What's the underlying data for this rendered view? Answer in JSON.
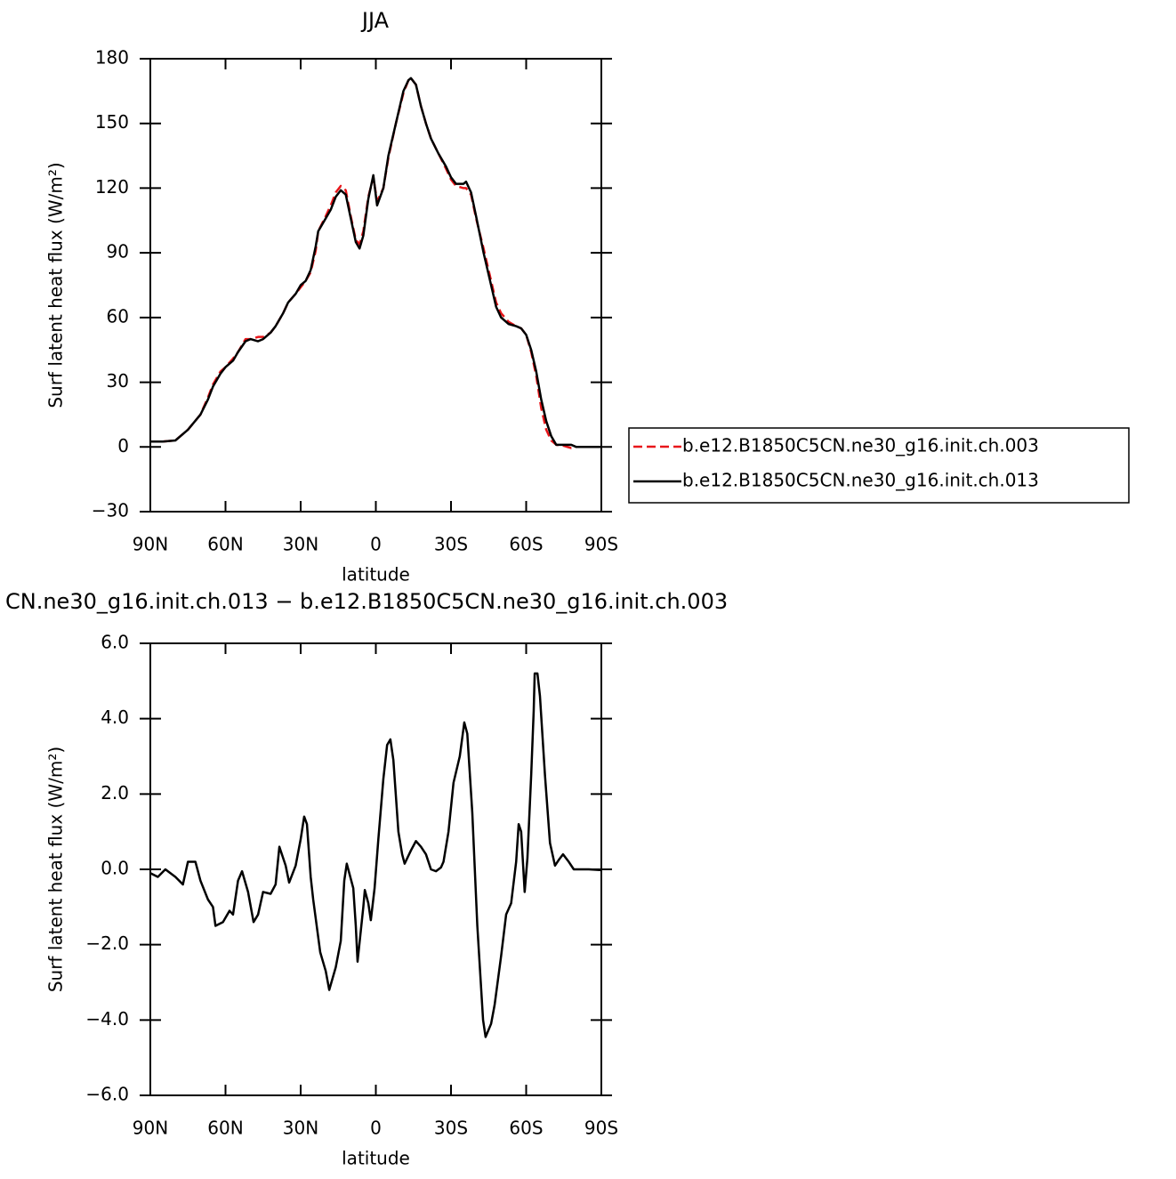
{
  "chart_data": [
    {
      "type": "line",
      "title": "JJA",
      "xlabel": "latitude",
      "ylabel": "Surf latent heat flux (W/m²)",
      "x": [
        90,
        85,
        80,
        75,
        70,
        67,
        65,
        62,
        60,
        57,
        55,
        52,
        50,
        47,
        45,
        42,
        40,
        37,
        35,
        32,
        30,
        28,
        26,
        24,
        23,
        20,
        18,
        16,
        14,
        12,
        10,
        8,
        6.5,
        5,
        3,
        1,
        -0.5,
        -3,
        -5,
        -8,
        -11,
        -13,
        -14,
        -16,
        -18,
        -20,
        -22,
        -25,
        -28,
        -30,
        -32,
        -35,
        -36,
        -38,
        -40,
        -43,
        -46,
        -48,
        -50,
        -53,
        -56,
        -58,
        -60,
        -62,
        -64,
        -66,
        -68,
        -70,
        -72,
        -75,
        -78,
        -80,
        -85,
        -90
      ],
      "series": [
        {
          "name": "b.e12.B1850C5CN.ne30_g16.init.ch.003",
          "color": "#e8161a",
          "linestyle": "dashed",
          "values": [
            2.5,
            2.5,
            3,
            8,
            15,
            23,
            29,
            35,
            37,
            41,
            44,
            50,
            50,
            51,
            51,
            53,
            56,
            62,
            67,
            71,
            74,
            77,
            81,
            91,
            100,
            107,
            112,
            118,
            121,
            119,
            107,
            96,
            94,
            100,
            116,
            125,
            114,
            120,
            134,
            150,
            164,
            170,
            171,
            168,
            158,
            150,
            143,
            136,
            129,
            124,
            121,
            120,
            120,
            117,
            106,
            92,
            77,
            67,
            62,
            58,
            56,
            55,
            52,
            44,
            33,
            18,
            8,
            3,
            1,
            0.5,
            -0.5,
            0,
            0,
            0
          ]
        },
        {
          "name": "b.e12.B1850C5CN.ne30_g16.init.ch.013",
          "color": "#000000",
          "linestyle": "solid",
          "values": [
            2.5,
            2.5,
            3,
            8,
            15,
            22,
            28,
            34,
            37,
            40,
            44,
            49,
            50,
            49,
            50,
            53,
            56,
            62,
            67,
            71,
            75,
            77,
            82,
            93,
            100,
            106,
            110,
            116,
            119,
            117,
            106,
            95,
            92,
            98,
            115,
            126,
            112,
            120,
            135,
            150,
            165,
            170,
            171,
            168,
            158,
            150,
            143,
            136,
            130,
            125,
            122,
            122,
            123,
            118,
            107,
            90,
            75,
            65,
            60,
            57,
            56,
            55,
            52,
            45,
            35,
            22,
            12,
            5,
            1,
            1,
            1,
            0,
            0,
            0
          ]
        }
      ],
      "xlim": [
        90,
        -90
      ],
      "ylim": [
        -30,
        180
      ],
      "xticks": [
        {
          "value": 90,
          "label": "90N"
        },
        {
          "value": 60,
          "label": "60N"
        },
        {
          "value": 30,
          "label": "30N"
        },
        0,
        {
          "value": -30,
          "label": "30S"
        },
        {
          "value": -60,
          "label": "60S"
        },
        {
          "value": -90,
          "label": "90S"
        }
      ],
      "yticks": [
        {
          "value": -30,
          "label": "−30"
        },
        0,
        30,
        60,
        90,
        120,
        150,
        180
      ],
      "legend": "right"
    },
    {
      "type": "line",
      "title": "CN.ne30_g16.init.ch.013 − b.e12.B1850C5CN.ne30_g16.init.ch.003",
      "xlabel": "latitude",
      "ylabel": "Surf latent heat flux (W/m²)",
      "x": [
        90,
        87,
        84,
        80,
        77,
        75,
        72,
        70,
        67,
        65,
        64,
        61,
        58.4,
        57,
        55,
        53.4,
        51,
        48.8,
        47,
        45,
        42,
        40,
        38.5,
        36,
        34.6,
        32,
        30,
        28.6,
        27.5,
        26,
        25,
        22.2,
        20,
        18.6,
        16,
        14,
        12.6,
        11.6,
        9,
        8,
        7.3,
        5,
        4.4,
        3,
        2,
        0.5,
        -1,
        -3,
        -4.5,
        -5.8,
        -7,
        -9,
        -10.5,
        -11.5,
        -14,
        -16,
        -18,
        -20,
        -22,
        -24,
        -26,
        -27,
        -29,
        -31,
        -33.5,
        -35.3,
        -36.5,
        -38.5,
        -40.5,
        -42.8,
        -43.8,
        -46,
        -47.4,
        -50,
        -52,
        -54,
        -56,
        -57,
        -58,
        -59.4,
        -60.5,
        -62,
        -63,
        -63.4,
        -64.5,
        -65.5,
        -67.5,
        -69.5,
        -71.5,
        -73,
        -74.7,
        -77,
        -79,
        -85,
        -90
      ],
      "series": [
        {
          "color": "#000000",
          "linestyle": "solid",
          "values": [
            -0.1,
            -0.2,
            0.0,
            -0.2,
            -0.4,
            0.2,
            0.2,
            -0.3,
            -0.8,
            -1.0,
            -1.5,
            -1.4,
            -1.1,
            -1.2,
            -0.3,
            -0.05,
            -0.6,
            -1.4,
            -1.2,
            -0.6,
            -0.65,
            -0.4,
            0.6,
            0.1,
            -0.35,
            0.1,
            0.8,
            1.4,
            1.2,
            -0.2,
            -0.8,
            -2.2,
            -2.7,
            -3.2,
            -2.6,
            -1.9,
            -0.3,
            0.15,
            -0.5,
            -1.5,
            -2.45,
            -1.0,
            -0.55,
            -0.9,
            -1.35,
            -0.5,
            0.8,
            2.4,
            3.3,
            3.45,
            2.9,
            1.0,
            0.4,
            0.15,
            0.5,
            0.75,
            0.6,
            0.4,
            0.0,
            -0.05,
            0.05,
            0.2,
            1.0,
            2.3,
            3.0,
            3.9,
            3.6,
            1.5,
            -1.5,
            -4.0,
            -4.45,
            -4.1,
            -3.6,
            -2.3,
            -1.2,
            -0.9,
            0.2,
            1.2,
            1.0,
            -0.6,
            0.3,
            2.5,
            4.2,
            5.2,
            5.2,
            4.6,
            2.5,
            0.7,
            0.1,
            0.25,
            0.4,
            0.2,
            0.0,
            0.0,
            -0.02
          ]
        }
      ],
      "xlim": [
        90,
        -90
      ],
      "ylim": [
        -6,
        6
      ],
      "xticks": [
        {
          "value": 90,
          "label": "90N"
        },
        {
          "value": 60,
          "label": "60N"
        },
        {
          "value": 30,
          "label": "30N"
        },
        0,
        {
          "value": -30,
          "label": "30S"
        },
        {
          "value": -60,
          "label": "60S"
        },
        {
          "value": -90,
          "label": "90S"
        }
      ],
      "yticks": [
        {
          "value": -6,
          "label": "−6.0"
        },
        {
          "value": -4,
          "label": "−4.0"
        },
        {
          "value": -2,
          "label": "−2.0"
        },
        {
          "value": 0,
          "label": "0.0"
        },
        {
          "value": 2,
          "label": "2.0"
        },
        {
          "value": 4,
          "label": "4.0"
        },
        {
          "value": 6,
          "label": "6.0"
        }
      ]
    }
  ]
}
